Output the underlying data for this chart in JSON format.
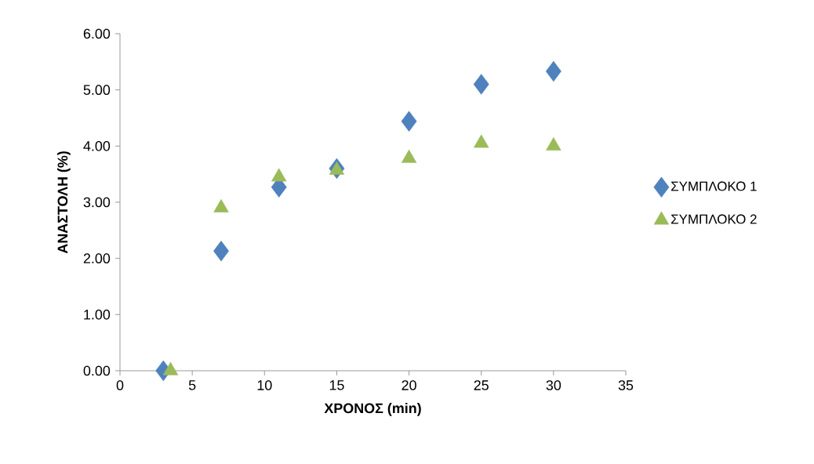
{
  "chart_data": {
    "type": "scatter",
    "xlabel": "ΧΡΟΝΟΣ (min)",
    "ylabel": "ΑΝΑΣΤΟΛΗ (%)",
    "xlim": [
      0,
      35
    ],
    "xticks": [
      0,
      5,
      10,
      15,
      20,
      25,
      30,
      35
    ],
    "ylim": [
      0,
      6
    ],
    "yticks": [
      {
        "value": 0,
        "label": "0.00"
      },
      {
        "value": 1,
        "label": "1.00"
      },
      {
        "value": 2,
        "label": "2.00"
      },
      {
        "value": 3,
        "label": "3.00"
      },
      {
        "value": 4,
        "label": "4.00"
      },
      {
        "value": 5,
        "label": "5.00"
      },
      {
        "value": 6,
        "label": "6.00"
      }
    ],
    "grid": false,
    "legend": "right",
    "series": [
      {
        "name": "ΣΥΜΠΛΟΚΟ 1",
        "color": "#4f81bd",
        "marker": "diamond",
        "x": [
          3,
          7,
          11,
          15,
          20,
          25,
          30
        ],
        "values": [
          0,
          2.13,
          3.27,
          3.6,
          4.44,
          5.1,
          5.33
        ]
      },
      {
        "name": "ΣΥΜΠΛΟΚΟ 2",
        "color": "#9bbb59",
        "marker": "triangle",
        "x": [
          3.5,
          7,
          11,
          15,
          20,
          25,
          30
        ],
        "values": [
          0,
          2.9,
          3.45,
          3.57,
          3.78,
          4.05,
          4.0
        ]
      }
    ]
  }
}
